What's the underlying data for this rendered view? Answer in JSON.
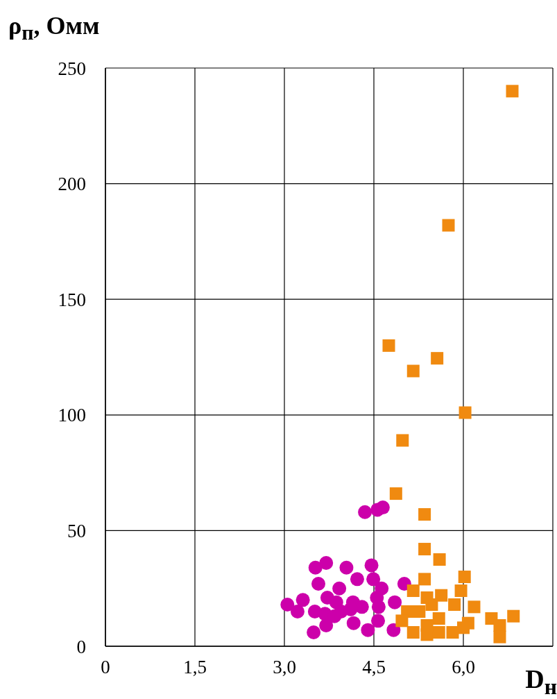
{
  "chart_data": {
    "type": "scatter",
    "xlabel": "D$_{н}$",
    "ylabel": "ρ$_{п}$, Омм",
    "xlim": [
      0,
      7.5
    ],
    "ylim": [
      0,
      250
    ],
    "xticks": [
      0,
      {
        "value": 1.5,
        "label": "1,5"
      },
      {
        "value": 3,
        "label": "3,0"
      },
      {
        "value": 4.5,
        "label": "4,5"
      },
      {
        "value": 6,
        "label": "6,0"
      },
      {
        "value": 7.5,
        "label": null
      }
    ],
    "yticks": [
      0,
      50,
      100,
      150,
      200,
      250
    ],
    "grid": true,
    "legend": false,
    "series": [
      {
        "color": "#cc00aa",
        "marker": "circle",
        "x": [
          4.35,
          4.56,
          4.65,
          3.7,
          3.52,
          4.04,
          4.46,
          4.22,
          3.57,
          3.92,
          4.49,
          4.63,
          5.01,
          3.31,
          3.05,
          3.22,
          3.72,
          3.87,
          4.15,
          4.3,
          4.55,
          4.58,
          4.85,
          3.51,
          3.68,
          3.95,
          4.11,
          3.7,
          3.49,
          4.16,
          4.4,
          4.57,
          4.83,
          3.84
        ],
        "values": [
          58,
          59,
          60,
          36,
          34,
          34,
          35,
          29,
          27,
          25,
          29,
          25,
          27,
          20,
          18,
          15,
          21,
          19,
          19,
          17,
          21,
          17,
          19,
          15,
          14,
          15,
          16,
          9,
          6,
          10,
          7,
          11,
          7,
          13
        ]
      },
      {
        "color": "#f08a10",
        "marker": "square",
        "x": [
          6.82,
          5.75,
          4.75,
          5.16,
          5.56,
          6.03,
          4.98,
          4.87,
          5.35,
          5.35,
          5.6,
          5.35,
          6.02,
          5.16,
          5.39,
          5.63,
          5.96,
          5.06,
          5.26,
          5.47,
          5.85,
          6.18,
          4.97,
          5.59,
          6.08,
          6.47,
          6.84,
          6.61,
          6.61,
          5.16,
          5.39,
          5.59,
          5.82,
          6.0,
          5.39
        ],
        "values": [
          240,
          182,
          130,
          119,
          124.5,
          101,
          89,
          66,
          57,
          42,
          37.5,
          29,
          30,
          24,
          21,
          22,
          24,
          15,
          15,
          18,
          18,
          17,
          11,
          12,
          10,
          12,
          13,
          9,
          4,
          6,
          5,
          6,
          6,
          8,
          9
        ]
      }
    ]
  }
}
